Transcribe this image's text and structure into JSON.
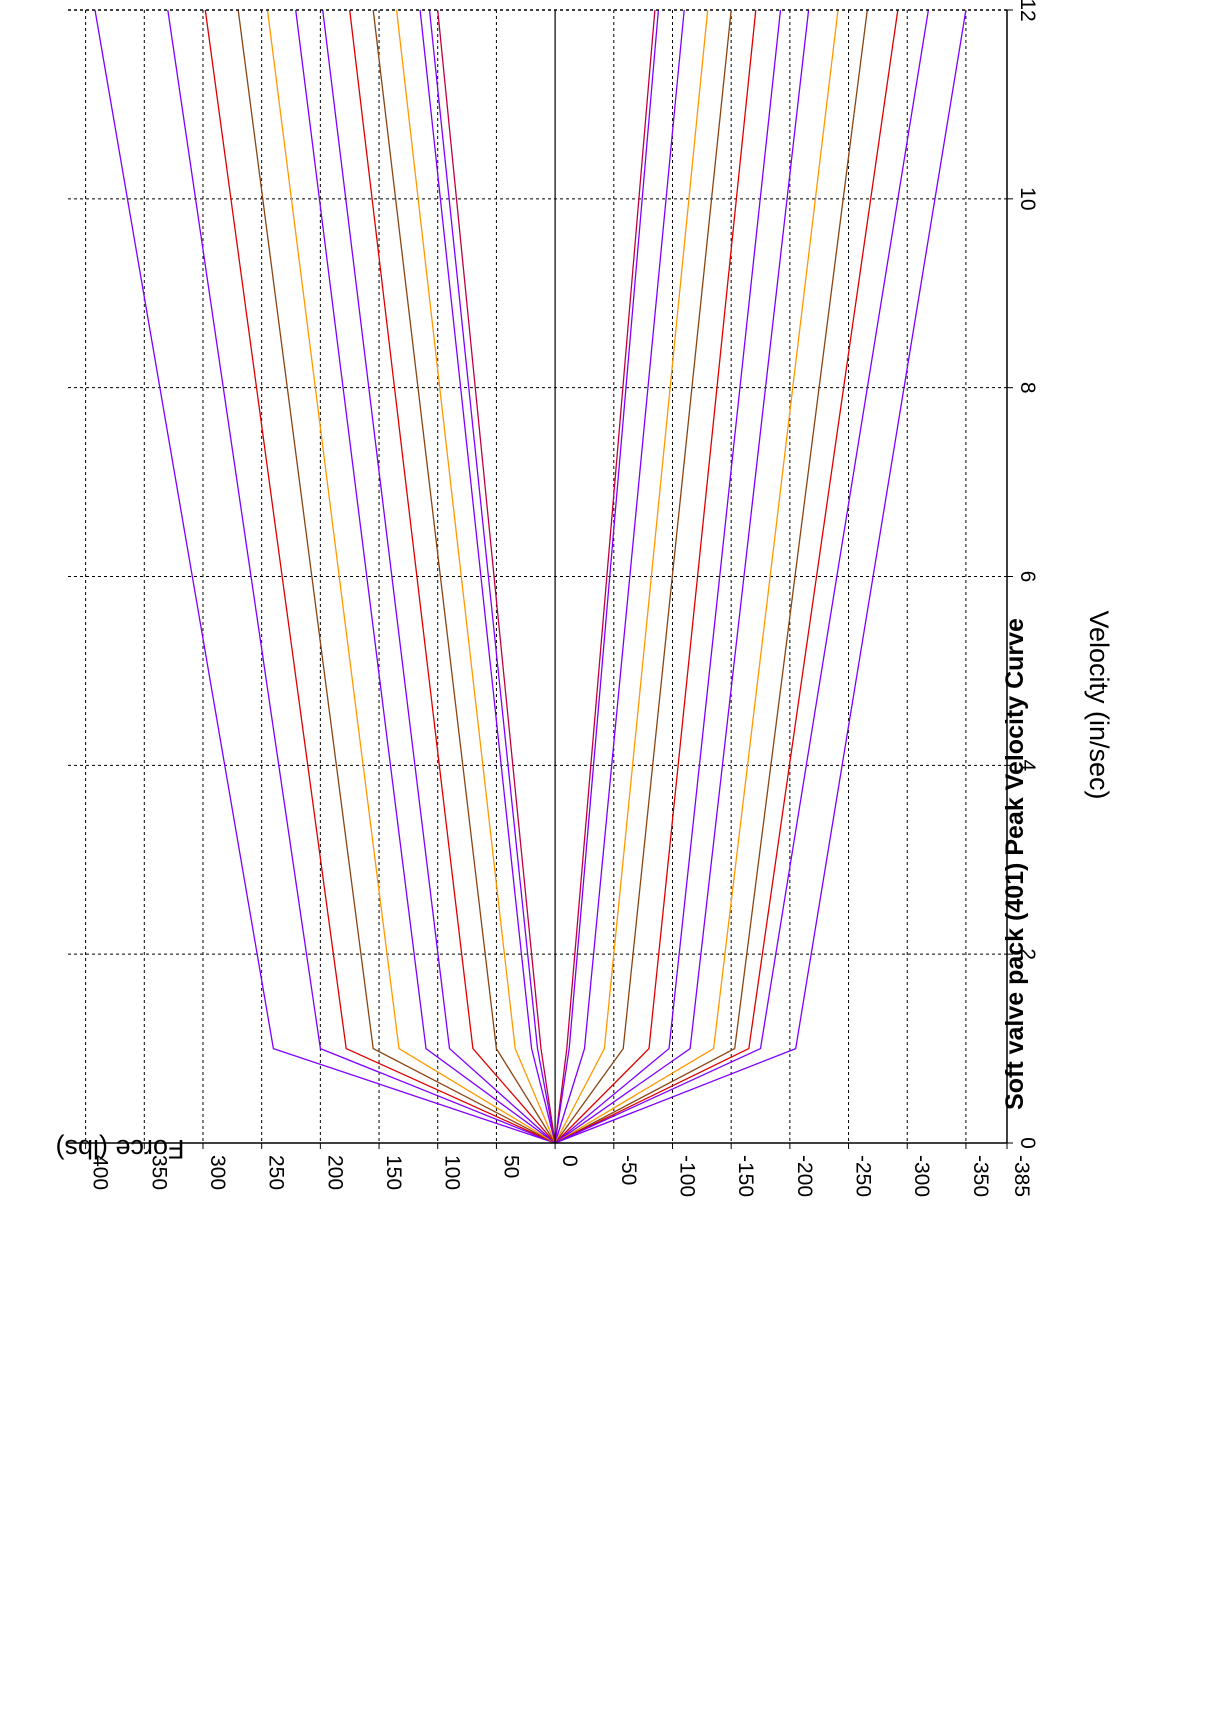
{
  "chart_data": {
    "type": "line",
    "title": "Soft valve pack (401) Peak Velocity Curve",
    "xlabel": "Velocity (in/sec)",
    "ylabel": "Force (lbs)",
    "xlim": [
      0,
      12
    ],
    "ylim": [
      -385,
      415
    ],
    "x_ticks": [
      0,
      2,
      4,
      6,
      8,
      10,
      12
    ],
    "y_ticks": [
      400,
      350,
      300,
      250,
      200,
      150,
      100,
      50,
      0,
      -50,
      -100,
      -150,
      -200,
      -250,
      -300,
      -350,
      -385
    ],
    "grid": true,
    "x": [
      0,
      1,
      12
    ],
    "series": [
      {
        "color": "#7f00ff",
        "values": [
          0,
          240,
          392
        ]
      },
      {
        "color": "#7f00ff",
        "values": [
          0,
          200,
          330
        ]
      },
      {
        "color": "#e00000",
        "values": [
          0,
          178,
          298
        ]
      },
      {
        "color": "#8b4513",
        "values": [
          0,
          155,
          270
        ]
      },
      {
        "color": "#ff9900",
        "values": [
          0,
          133,
          245
        ]
      },
      {
        "color": "#7f00ff",
        "values": [
          0,
          110,
          221
        ]
      },
      {
        "color": "#7f00ff",
        "values": [
          0,
          90,
          198
        ]
      },
      {
        "color": "#e00000",
        "values": [
          0,
          70,
          175
        ]
      },
      {
        "color": "#8b4513",
        "values": [
          0,
          50,
          155
        ]
      },
      {
        "color": "#ff9900",
        "values": [
          0,
          34,
          135
        ]
      },
      {
        "color": "#7f00ff",
        "values": [
          0,
          20,
          115
        ]
      },
      {
        "color": "#7f00ff",
        "values": [
          0,
          15,
          107
        ]
      },
      {
        "color": "#c00040",
        "values": [
          0,
          12,
          100
        ]
      },
      {
        "color": "#c00040",
        "values": [
          0,
          -10,
          -85
        ]
      },
      {
        "color": "#7f00ff",
        "values": [
          0,
          -12,
          -88
        ]
      },
      {
        "color": "#7f00ff",
        "values": [
          0,
          -25,
          -110
        ]
      },
      {
        "color": "#ff9900",
        "values": [
          0,
          -42,
          -130
        ]
      },
      {
        "color": "#8b4513",
        "values": [
          0,
          -58,
          -150
        ]
      },
      {
        "color": "#e00000",
        "values": [
          0,
          -80,
          -171
        ]
      },
      {
        "color": "#7f00ff",
        "values": [
          0,
          -97,
          -192
        ]
      },
      {
        "color": "#7f00ff",
        "values": [
          0,
          -115,
          -216
        ]
      },
      {
        "color": "#ff9900",
        "values": [
          0,
          -135,
          -241
        ]
      },
      {
        "color": "#8b4513",
        "values": [
          0,
          -153,
          -266
        ]
      },
      {
        "color": "#e00000",
        "values": [
          0,
          -165,
          -292
        ]
      },
      {
        "color": "#7f00ff",
        "values": [
          0,
          -175,
          -318
        ]
      },
      {
        "color": "#7f00ff",
        "values": [
          0,
          -205,
          -350
        ]
      }
    ]
  }
}
